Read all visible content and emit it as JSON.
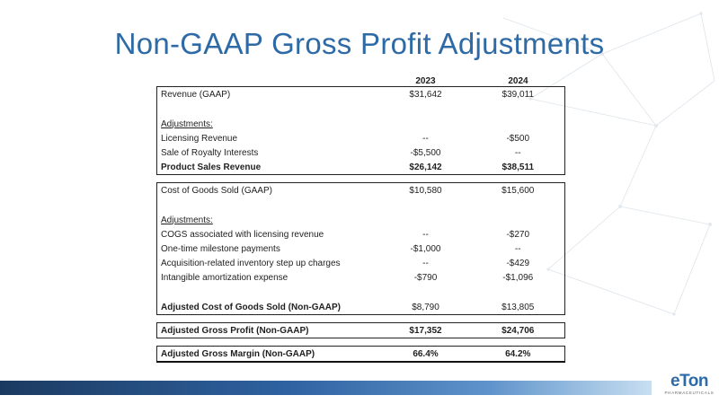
{
  "slide": {
    "title": "Non-GAAP Gross Profit Adjustments"
  },
  "table": {
    "headers": {
      "y1": "2023",
      "y2": "2024"
    },
    "rows": [
      {
        "label": "Revenue (GAAP)",
        "y1": "$31,642",
        "y2": "$39,011"
      },
      {
        "label": "Adjustments:"
      },
      {
        "label": "Licensing Revenue",
        "y1": "--",
        "y2": "-$500"
      },
      {
        "label": "Sale of Royalty Interests",
        "y1": "-$5,500",
        "y2": "--"
      },
      {
        "label": "Product Sales Revenue",
        "y1": "$26,142",
        "y2": "$38,511"
      },
      {
        "label": "Cost of Goods Sold (GAAP)",
        "y1": "$10,580",
        "y2": "$15,600"
      },
      {
        "label": "Adjustments:"
      },
      {
        "label": "COGS associated with licensing revenue",
        "y1": "--",
        "y2": "-$270"
      },
      {
        "label": "One-time milestone payments",
        "y1": "-$1,000",
        "y2": "--"
      },
      {
        "label": "Acquisition-related inventory step up charges",
        "y1": "--",
        "y2": "-$429"
      },
      {
        "label": "Intangible amortization expense",
        "y1": "-$790",
        "y2": "-$1,096"
      },
      {
        "label": "Adjusted Cost of Goods Sold (Non-GAAP)",
        "y1": "$8,790",
        "y2": "$13,805"
      },
      {
        "label": "Adjusted Gross Profit (Non-GAAP)",
        "y1": "$17,352",
        "y2": "$24,706"
      },
      {
        "label": "Adjusted Gross Margin (Non-GAAP)",
        "y1": "66.4%",
        "y2": "64.2%"
      }
    ]
  },
  "logo": {
    "mark": "eTon",
    "tagline": "PHARMACEUTICALS"
  },
  "colors": {
    "title": "#2e6aa6",
    "bar_dark": "#1b3a60",
    "bar_light": "#c8dff1"
  }
}
